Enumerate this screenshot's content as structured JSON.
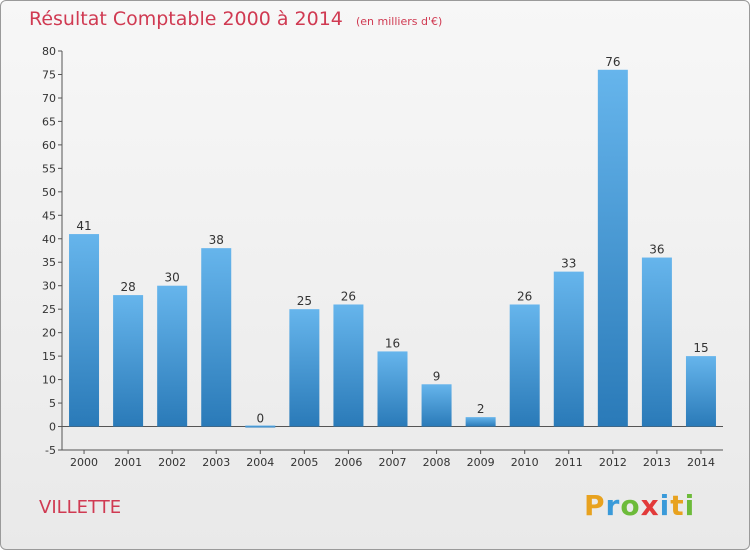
{
  "header": {
    "title": "Résultat Comptable 2000 à 2014",
    "unit": "(en milliers d'€)"
  },
  "commune": "VILLETTE",
  "logo": {
    "letters": [
      "P",
      "r",
      "o",
      "x",
      "i",
      "t",
      "i"
    ],
    "colors": [
      "#e8a21f",
      "#3a9ad9",
      "#6dbb3a",
      "#e23a3a",
      "#3a9ad9",
      "#e8a21f",
      "#6dbb3a"
    ]
  },
  "colors": {
    "bar_light": "#66b5ec",
    "bar_dark": "#2a7ab8",
    "axis": "#555555",
    "text": "#333333",
    "title": "#d03a52"
  },
  "chart_data": {
    "type": "bar",
    "title": "Résultat Comptable 2000 à 2014",
    "subtitle": "(en milliers d'€)",
    "categories": [
      "2000",
      "2001",
      "2002",
      "2003",
      "2004",
      "2005",
      "2006",
      "2007",
      "2008",
      "2009",
      "2010",
      "2011",
      "2012",
      "2013",
      "2014"
    ],
    "values": [
      41,
      28,
      30,
      38,
      0,
      25,
      26,
      16,
      9,
      2,
      26,
      33,
      76,
      36,
      15
    ],
    "ylim": [
      -5,
      80
    ],
    "yticks": [
      -5,
      0,
      5,
      10,
      15,
      20,
      25,
      30,
      35,
      40,
      45,
      50,
      55,
      60,
      65,
      70,
      75,
      80
    ],
    "grid": false,
    "legend": "none"
  }
}
